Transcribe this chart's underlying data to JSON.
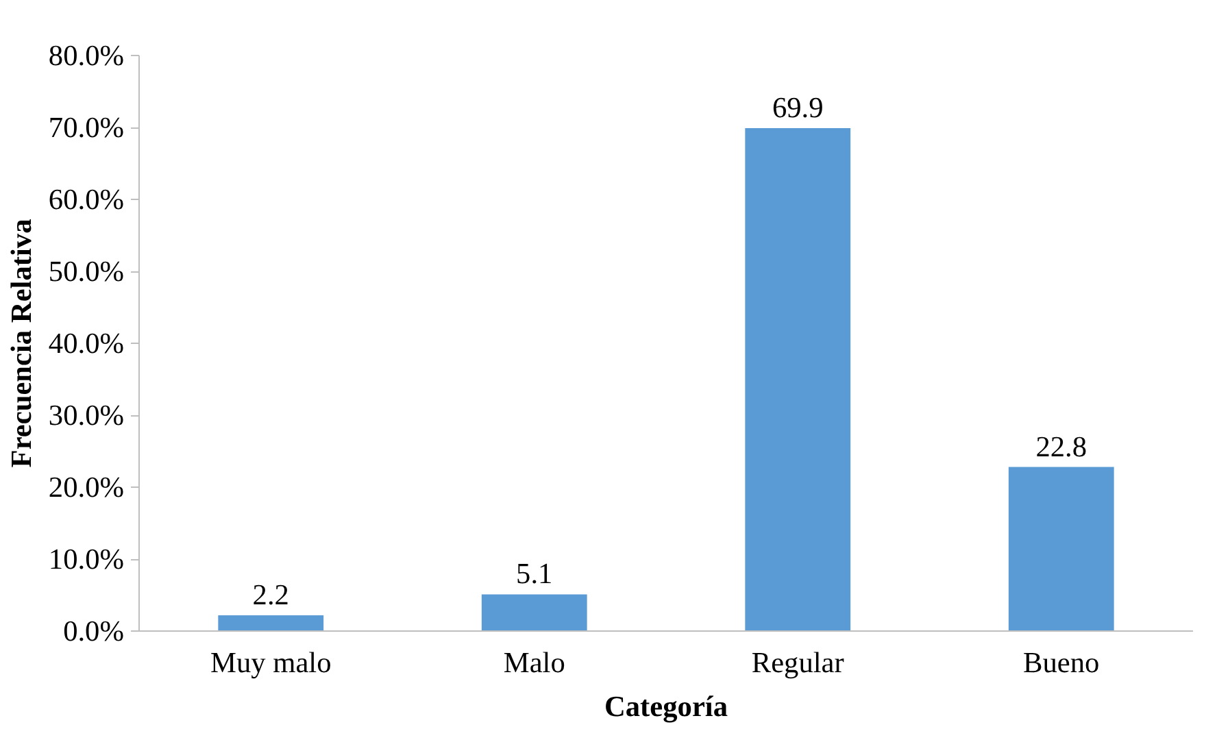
{
  "chart_data": {
    "type": "bar",
    "xlabel": "Categoría",
    "ylabel": "Frecuencia Relativa",
    "categories": [
      "Muy malo",
      "Malo",
      "Regular",
      "Bueno"
    ],
    "values": [
      2.2,
      5.1,
      69.9,
      22.8
    ],
    "color": "#5b9bd5",
    "data_labels": true,
    "ylim": [
      0,
      80
    ],
    "yticks": [
      {
        "value": 0,
        "label": "0.0%"
      },
      {
        "value": 10,
        "label": "10.0%"
      },
      {
        "value": 20,
        "label": "20.0%"
      },
      {
        "value": 30,
        "label": "30.0%"
      },
      {
        "value": 40,
        "label": "40.0%"
      },
      {
        "value": 50,
        "label": "50.0%"
      },
      {
        "value": 60,
        "label": "60.0%"
      },
      {
        "value": 70,
        "label": "70.0%"
      },
      {
        "value": 80,
        "label": "80.0%"
      }
    ],
    "grid": false
  }
}
